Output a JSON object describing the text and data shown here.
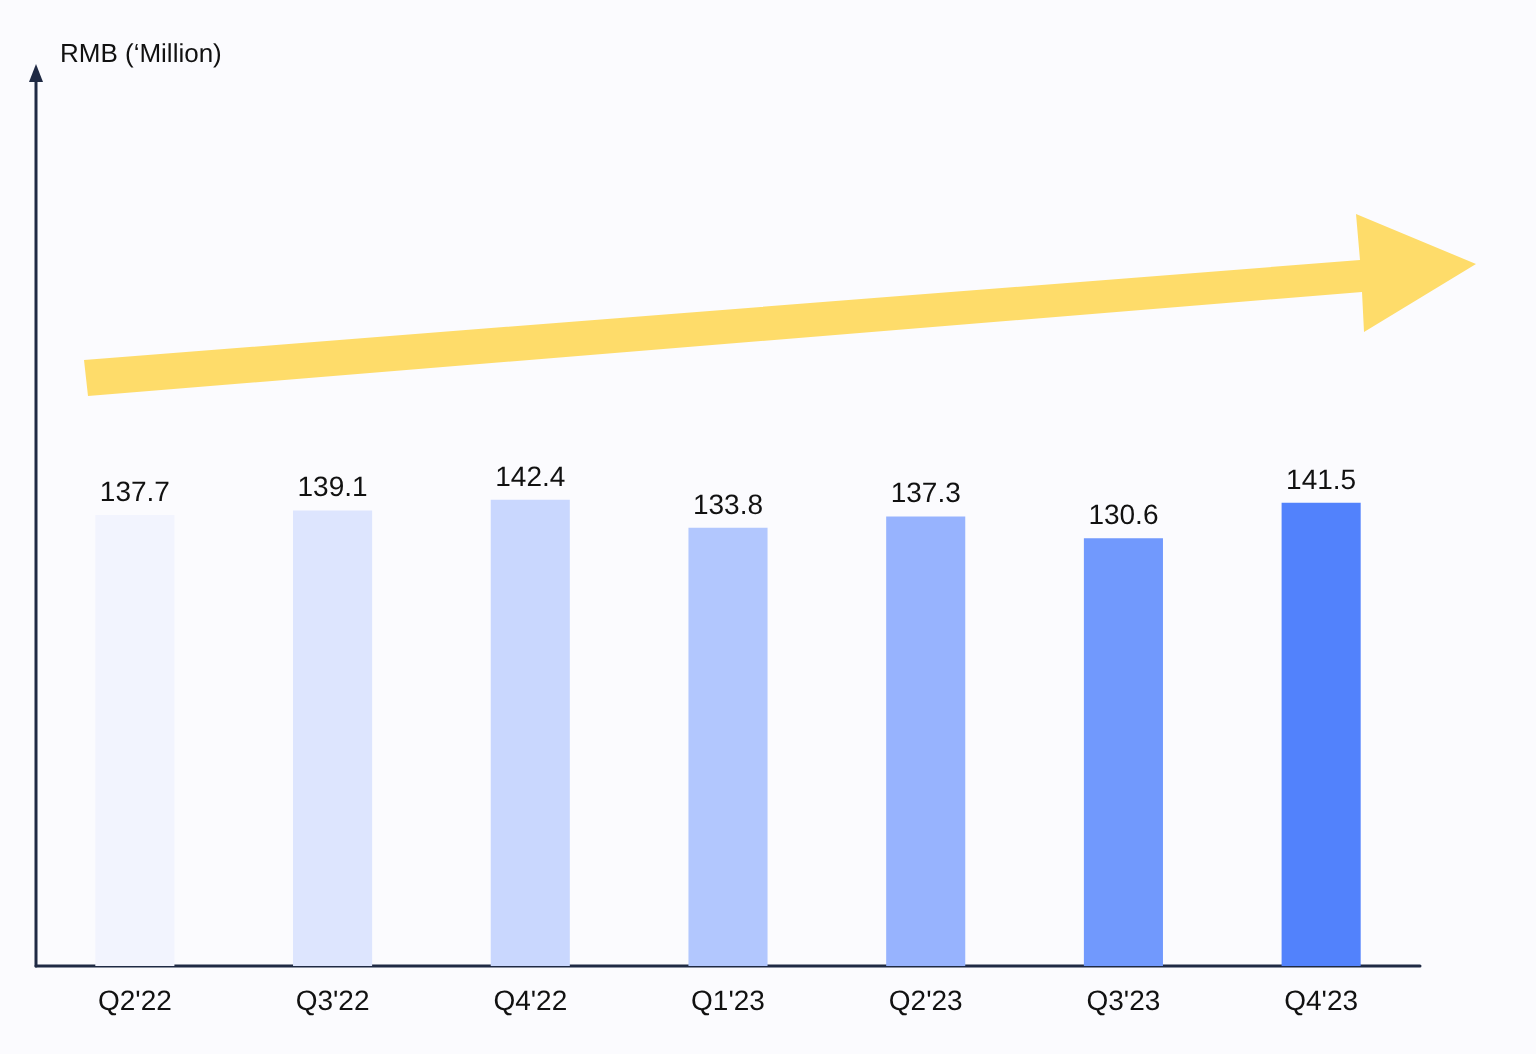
{
  "chart_data": {
    "type": "bar",
    "annotations": [
      "RMB (‘Million)"
    ],
    "categories": [
      "Q2'22",
      "Q3'22",
      "Q4'22",
      "Q1'23",
      "Q2'23",
      "Q3'23",
      "Q4'23"
    ],
    "values": [
      137.7,
      139.1,
      142.4,
      133.8,
      137.3,
      130.6,
      141.5
    ],
    "colors": [
      "#f2f4fe",
      "#dde5fe",
      "#c9d7fe",
      "#b2c7fe",
      "#97b3fe",
      "#7199fd",
      "#5282fc"
    ],
    "data_labels": true,
    "grid": false
  }
}
